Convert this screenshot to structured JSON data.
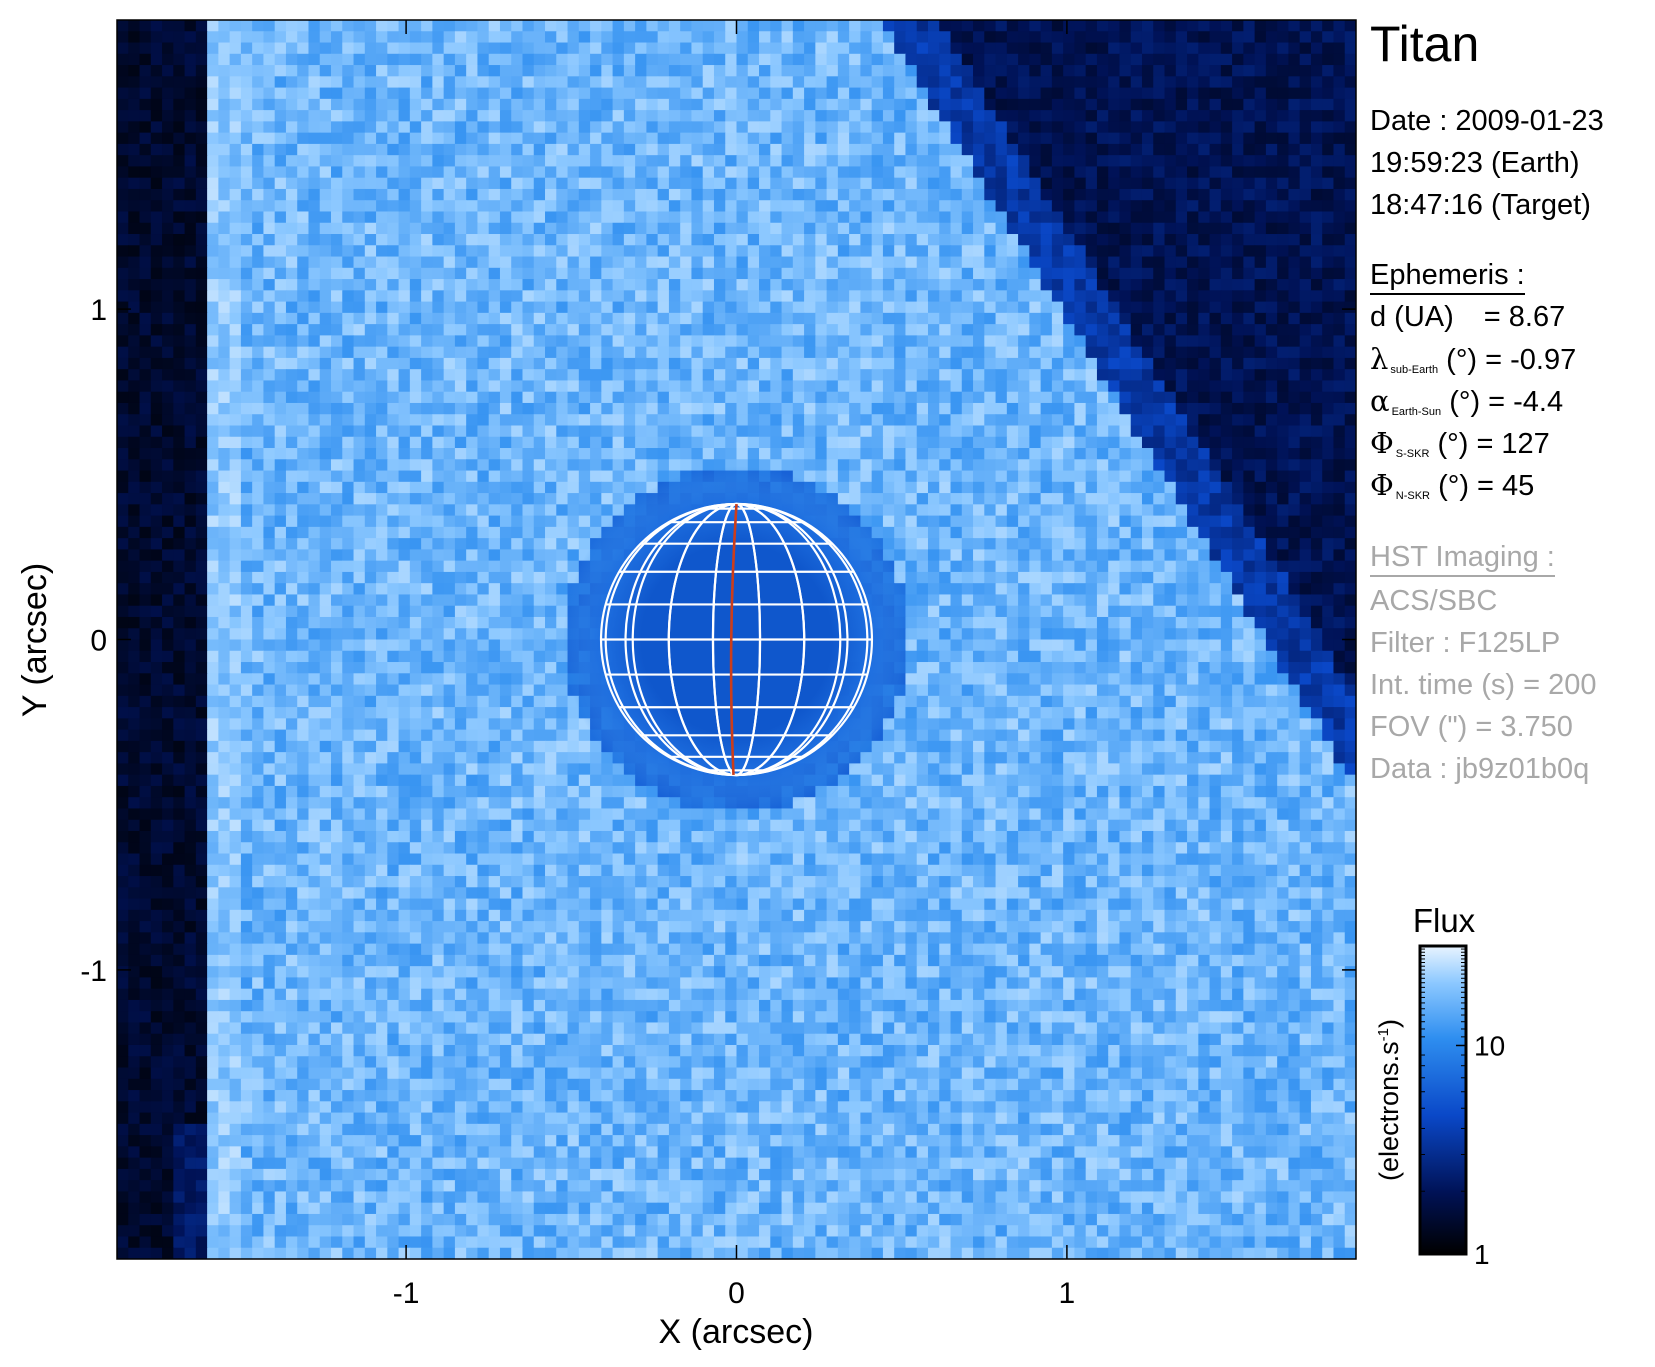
{
  "chart_data": {
    "type": "heatmap",
    "title": "Titan",
    "xlabel": "X (arcsec)",
    "ylabel": "Y (arcsec)",
    "xlim": [
      -1.875,
      1.875
    ],
    "ylim": [
      -1.875,
      1.875
    ],
    "xticks": [
      -1,
      0,
      1
    ],
    "yticks": [
      -1,
      0,
      1
    ],
    "grid": false,
    "planet": {
      "center_arcsec": [
        0,
        0
      ],
      "radius_arcsec": 0.41,
      "graticule": true,
      "central_meridian_color": "#cc3d1a"
    },
    "colorbar": {
      "title": "Flux",
      "label": "(electrons.s",
      "label_sup": "-1",
      "label_end": ")",
      "scale": "log",
      "range": [
        1,
        30
      ],
      "ticks": [
        1,
        10
      ],
      "colors": [
        "#000000",
        "#001256",
        "#0a48c8",
        "#2e8ef0",
        "#8cc8ff",
        "#e8f4ff"
      ]
    }
  },
  "info": {
    "date_line": "Date : 2009-01-23",
    "earth_time": "19:59:23 (Earth)",
    "target_time": "18:47:16 (Target)",
    "ephemeris_header": "Ephemeris :",
    "d_label": "d (UA)",
    "d_value": "= 8.67",
    "lambda_sym": "λ",
    "lambda_sub": "sub-Earth",
    "lambda_rest": "(°) = -0.97",
    "alpha_sym": "α",
    "alpha_sub": "Earth-Sun",
    "alpha_rest": "(°) = -4.4",
    "phi_sym": "Φ",
    "phi_s_sub": "S-SKR",
    "phi_s_rest": "(°)   = 127",
    "phi_n_sub": "N-SKR",
    "phi_n_rest": "(°)   = 45",
    "hst_header": "HST Imaging :",
    "instrument": "ACS/SBC",
    "filter": "Filter : F125LP",
    "int_time": "Int. time (s) = 200",
    "fov": "FOV (\") = 3.750",
    "data": "Data : jb9z01b0q"
  }
}
